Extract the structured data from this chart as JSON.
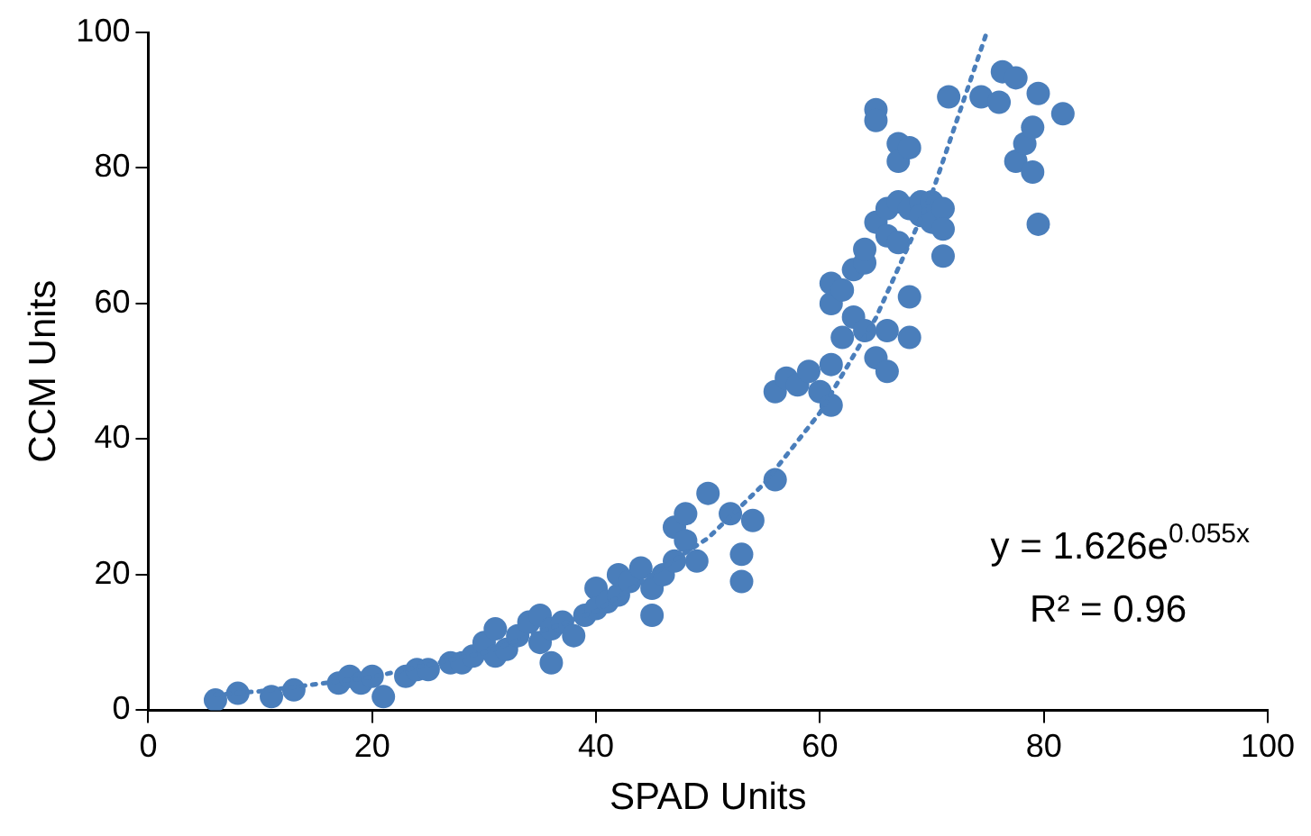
{
  "chart_data": {
    "type": "scatter",
    "xlabel": "SPAD Units",
    "ylabel": "CCM Units",
    "xlim": [
      0,
      100
    ],
    "xticks": [
      0,
      20,
      40,
      60,
      80,
      100
    ],
    "ylim": [
      0,
      100
    ],
    "yticks": [
      0,
      20,
      40,
      60,
      80,
      100
    ],
    "grid": false,
    "legend": false,
    "marker": "circle",
    "annotations": [
      "y = 1.626e$^{0.055x}$",
      "R² = 0.96"
    ],
    "series": [
      {
        "type": "scatter",
        "color": "#4a7ebb",
        "x": [
          6,
          8,
          11,
          13,
          17,
          18,
          19,
          20,
          21,
          23,
          24,
          25,
          27,
          28,
          29,
          30,
          31,
          31,
          32,
          33,
          34,
          35,
          35,
          36,
          36,
          37,
          38,
          39,
          40,
          40,
          41,
          42,
          42,
          43,
          44,
          45,
          45,
          46,
          47,
          47,
          48,
          48,
          49,
          50,
          52,
          53,
          53,
          54,
          56,
          56,
          57,
          58,
          59,
          60,
          61,
          61,
          61,
          61,
          62,
          62,
          63,
          63,
          64,
          64,
          64,
          65,
          65,
          65,
          65,
          66,
          66,
          66,
          66,
          67,
          67,
          67,
          67,
          68,
          68,
          68,
          68,
          69,
          69,
          70,
          70,
          71,
          71,
          71,
          71.5,
          74.4,
          76,
          76.3,
          77.5,
          77.5,
          78.3,
          79,
          79,
          79.5,
          79.5,
          81.7
        ],
        "values": [
          1.5,
          2.5,
          2,
          3,
          4,
          5,
          4,
          5,
          2,
          5,
          6,
          6,
          7,
          7,
          8,
          10,
          12,
          8,
          9,
          11,
          13,
          10,
          14,
          12,
          7,
          13,
          11,
          14,
          18,
          15,
          16,
          17,
          20,
          19,
          21,
          18,
          14,
          20,
          22,
          27,
          25,
          29,
          22,
          32,
          29,
          23,
          19,
          28,
          34,
          47,
          49,
          48,
          50,
          47,
          45,
          51,
          60,
          63,
          62,
          55,
          65,
          58,
          66,
          68,
          56,
          52,
          72,
          88.6,
          87,
          74,
          70,
          56,
          50,
          75,
          69,
          83.6,
          81,
          83,
          61,
          55,
          74,
          75,
          73,
          75,
          72,
          67,
          74,
          71,
          90.5,
          90.5,
          89.7,
          94.2,
          93.3,
          81,
          83.6,
          86,
          79.4,
          91,
          71.7,
          88
        ]
      },
      {
        "type": "line",
        "color": "#4a7ebb",
        "line_style": "dotted",
        "marker": "none",
        "x": [
          6,
          10,
          20,
          30,
          40,
          50,
          55,
          60,
          65,
          70,
          74.9
        ],
        "values": [
          2.3,
          2.8,
          4.9,
          8.5,
          14.6,
          25.4,
          33.4,
          43.9,
          57.9,
          76.2,
          100
        ]
      }
    ]
  }
}
